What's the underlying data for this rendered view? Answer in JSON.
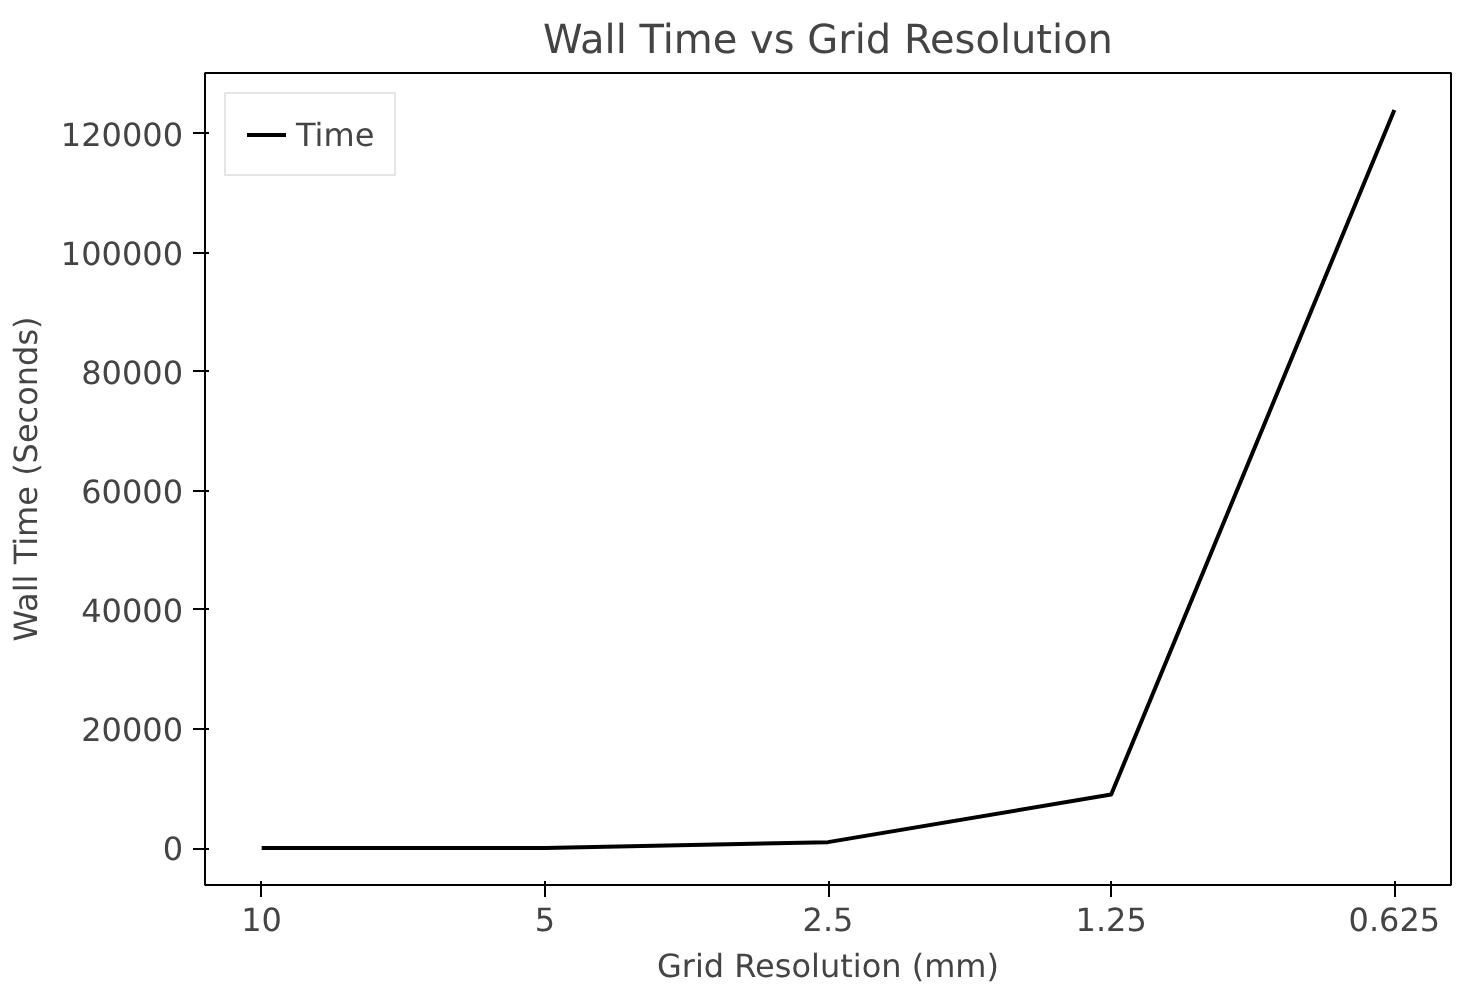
{
  "chart_data": {
    "type": "line",
    "title": "Wall Time vs Grid Resolution",
    "xlabel": "Grid Resolution (mm)",
    "ylabel": "Wall Time (Seconds)",
    "categories": [
      "10",
      "5",
      "2.5",
      "1.25",
      "0.625"
    ],
    "series": [
      {
        "name": "Time",
        "color": "#000000",
        "values": [
          0,
          0,
          1000,
          9000,
          124000
        ]
      }
    ],
    "ylim": [
      -6200,
      130200
    ],
    "yticks": [
      0,
      20000,
      40000,
      60000,
      80000,
      100000,
      120000
    ],
    "grid": false,
    "legend": "top left",
    "line_style": "solid",
    "marker": "none"
  }
}
